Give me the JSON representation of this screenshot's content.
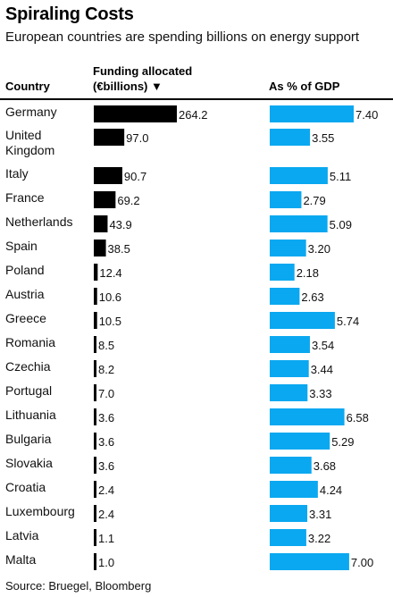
{
  "title": "Spiraling Costs",
  "subtitle": "European countries are spending billions on energy support",
  "headers": {
    "country": "Country",
    "funding": "Funding allocated (€billions) ▼",
    "gdp": "As % of GDP"
  },
  "source": "Source: Bruegel, Bloomberg",
  "chart_data": {
    "type": "bar",
    "title": "Spiraling Costs",
    "subtitle": "European countries are spending billions on energy support",
    "categories": [
      "Germany",
      "United Kingdom",
      "Italy",
      "France",
      "Netherlands",
      "Spain",
      "Poland",
      "Austria",
      "Greece",
      "Romania",
      "Czechia",
      "Portugal",
      "Lithuania",
      "Bulgaria",
      "Slovakia",
      "Croatia",
      "Luxembourg",
      "Latvia",
      "Malta"
    ],
    "series": [
      {
        "name": "Funding allocated (€billions)",
        "values": [
          264.2,
          97.0,
          90.7,
          69.2,
          43.9,
          38.5,
          12.4,
          10.6,
          10.5,
          8.5,
          8.2,
          7.0,
          3.6,
          3.6,
          3.6,
          2.4,
          2.4,
          1.1,
          1.0
        ],
        "labels": [
          "264.2",
          "97.0",
          "90.7",
          "69.2",
          "43.9",
          "38.5",
          "12.4",
          "10.6",
          "10.5",
          "8.5",
          "8.2",
          "7.0",
          "3.6",
          "3.6",
          "3.6",
          "2.4",
          "2.4",
          "1.1",
          "1.0"
        ],
        "color": "#000000"
      },
      {
        "name": "As % of GDP",
        "values": [
          7.4,
          3.55,
          5.11,
          2.79,
          5.09,
          3.2,
          2.18,
          2.63,
          5.74,
          3.54,
          3.44,
          3.33,
          6.58,
          5.29,
          3.68,
          4.24,
          3.31,
          3.22,
          7.0
        ],
        "labels": [
          "7.40",
          "3.55",
          "5.11",
          "2.79",
          "5.09",
          "3.20",
          "2.18",
          "2.63",
          "5.74",
          "3.54",
          "3.44",
          "3.33",
          "6.58",
          "5.29",
          "3.68",
          "4.24",
          "3.31",
          "3.22",
          "7.00"
        ],
        "color": "#0AA8F0"
      }
    ],
    "sort": "descending by funding allocated",
    "grid": false,
    "legend": "none"
  }
}
